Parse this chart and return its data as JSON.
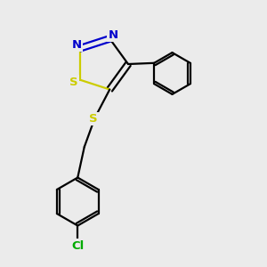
{
  "bg_color": "#ebebeb",
  "bond_color": "#000000",
  "N_color": "#0000cc",
  "S_color": "#cccc00",
  "Cl_color": "#00aa00",
  "line_width": 1.6,
  "figsize": [
    3.0,
    3.0
  ],
  "dpi": 100,
  "xlim": [
    0,
    10
  ],
  "ylim": [
    0,
    10
  ]
}
